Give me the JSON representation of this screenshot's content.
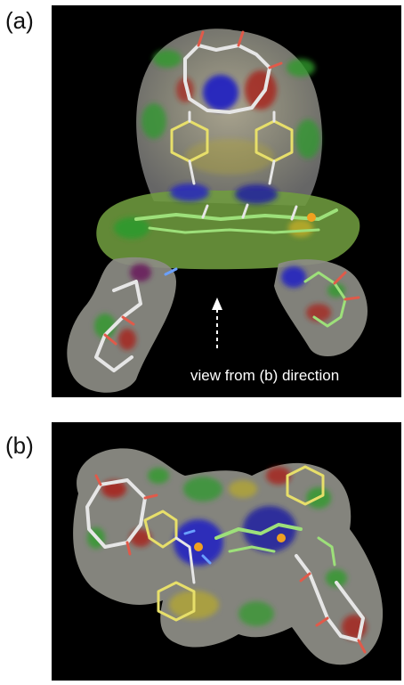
{
  "panel_a": {
    "label": "(a)",
    "annotation": "view from (b) direction"
  },
  "panel_b": {
    "label": "(b)"
  },
  "colors": {
    "background": "#000000",
    "surface_gray": "#9a9a9a",
    "surface_green": "#2f9a2b",
    "surface_yellow": "#b8a92a",
    "surface_red": "#a8221a",
    "surface_blue": "#2020b0",
    "stick_white": "#e6e6e6",
    "stick_yellow": "#e7df6a",
    "stick_green": "#9de07a",
    "arrow": "#ffffff"
  }
}
